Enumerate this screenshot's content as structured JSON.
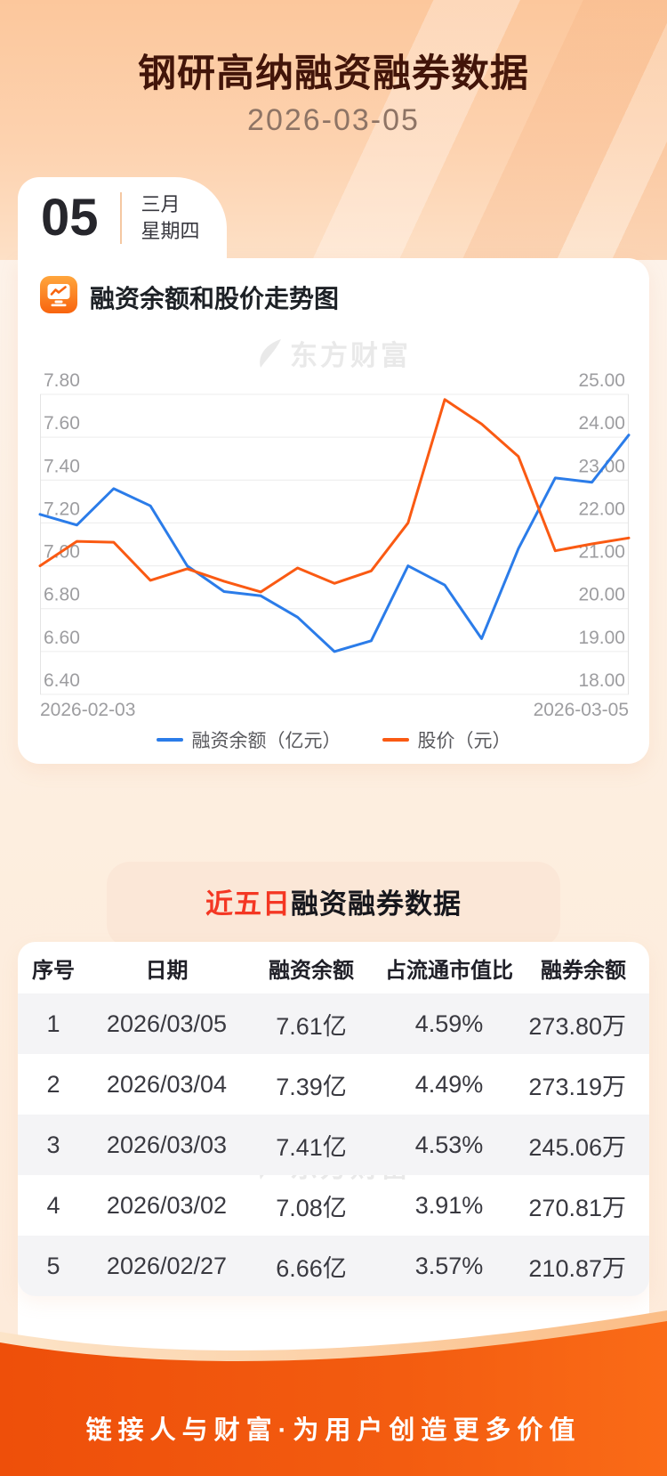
{
  "page": {
    "title": "钢研高纳融资融券数据",
    "subtitle_date": "2026-03-05",
    "date_card": {
      "day": "05",
      "month": "三月",
      "weekday": "星期四"
    },
    "footer_slogan": "链接人与财富·为用户创造更多价值"
  },
  "chart_section": {
    "title": "融资余额和股价走势图",
    "icon": "chart-monitor-icon",
    "watermark": "东方财富",
    "x_start_label": "2026-02-03",
    "x_end_label": "2026-03-05"
  },
  "chart_data": {
    "type": "line",
    "x_count": 17,
    "x_axis_labels_visible": [
      "2026-02-03",
      "2026-03-05"
    ],
    "series": [
      {
        "name": "融资余额（亿元）",
        "axis": "left",
        "color": "#2b7ce9",
        "values": [
          7.24,
          7.19,
          7.36,
          7.28,
          7.0,
          6.88,
          6.86,
          6.76,
          6.6,
          6.65,
          7.0,
          6.91,
          6.66,
          7.08,
          7.41,
          7.39,
          7.61
        ]
      },
      {
        "name": "股价（元）",
        "axis": "right",
        "color": "#fa5a13",
        "values": [
          21.0,
          21.57,
          21.55,
          20.66,
          20.93,
          20.64,
          20.39,
          20.95,
          20.59,
          20.88,
          22.0,
          24.88,
          24.31,
          23.55,
          21.35,
          21.51,
          21.65
        ]
      }
    ],
    "left_axis": {
      "min": 6.4,
      "max": 7.8,
      "step": 0.2,
      "labels": [
        "7.80",
        "7.60",
        "7.40",
        "7.20",
        "7.00",
        "6.80",
        "6.60",
        "6.40"
      ]
    },
    "right_axis": {
      "min": 18,
      "max": 25,
      "step": 1,
      "labels": [
        "25.00",
        "24.00",
        "23.00",
        "22.00",
        "21.00",
        "20.00",
        "19.00",
        "18.00"
      ]
    },
    "grid": true,
    "legend_position": "bottom"
  },
  "table_section": {
    "title_highlight": "近五日",
    "title_rest": "融资融券数据",
    "watermark": "东方财富",
    "columns": [
      "序号",
      "日期",
      "融资余额",
      "占流通市值比",
      "融券余额"
    ],
    "rows": [
      [
        "1",
        "2026/03/05",
        "7.61亿",
        "4.59%",
        "273.80万"
      ],
      [
        "2",
        "2026/03/04",
        "7.39亿",
        "4.49%",
        "273.19万"
      ],
      [
        "3",
        "2026/03/03",
        "7.41亿",
        "4.53%",
        "245.06万"
      ],
      [
        "4",
        "2026/03/02",
        "7.08亿",
        "3.91%",
        "270.81万"
      ],
      [
        "5",
        "2026/02/27",
        "6.66亿",
        "3.57%",
        "210.87万"
      ]
    ]
  },
  "colors": {
    "blue_line": "#2b7ce9",
    "orange_line": "#fa5a13",
    "title_brown": "#42150a",
    "banner_red": "#f43723",
    "footer_orange_left": "#ee4f0a",
    "footer_orange_right": "#fa6b17",
    "grid_gray": "#ececec",
    "axis_label_gray": "#9d9da0"
  }
}
